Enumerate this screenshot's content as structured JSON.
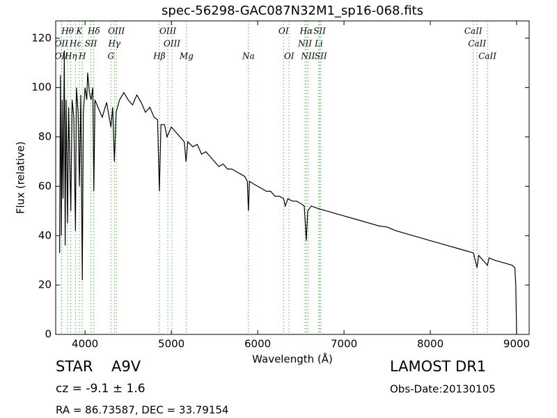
{
  "chart_data": {
    "type": "line",
    "title": "spec-56298-GAC087N32M1_sp16-068.fits",
    "x_label": "Wavelength (Å)",
    "y_label": "Flux (relative)",
    "xlim": [
      3660,
      9145
    ],
    "ylim": [
      0,
      127
    ],
    "xticks": [
      4000,
      5000,
      6000,
      7000,
      8000,
      9000
    ],
    "yticks": [
      0,
      20,
      40,
      60,
      80,
      100,
      120
    ],
    "color": "#000000",
    "line_color": "#4daf4a",
    "x": [
      3705,
      3715,
      3725,
      3735,
      3745,
      3760,
      3770,
      3780,
      3798,
      3810,
      3835,
      3850,
      3870,
      3889,
      3900,
      3920,
      3934,
      3950,
      3968,
      3980,
      4000,
      4020,
      4030,
      4050,
      4070,
      4090,
      4102,
      4115,
      4150,
      4200,
      4250,
      4300,
      4320,
      4340,
      4360,
      4400,
      4450,
      4500,
      4550,
      4600,
      4650,
      4700,
      4750,
      4800,
      4840,
      4861,
      4880,
      4920,
      4950,
      5000,
      5050,
      5100,
      5150,
      5170,
      5190,
      5250,
      5300,
      5350,
      5400,
      5450,
      5500,
      5550,
      5600,
      5650,
      5700,
      5750,
      5800,
      5850,
      5880,
      5893,
      5905,
      5950,
      6000,
      6050,
      6100,
      6150,
      6200,
      6250,
      6300,
      6320,
      6350,
      6400,
      6450,
      6500,
      6540,
      6563,
      6580,
      6620,
      6700,
      6800,
      6900,
      7000,
      7100,
      7200,
      7300,
      7400,
      7500,
      7600,
      7700,
      7800,
      7900,
      8000,
      8100,
      8200,
      8300,
      8400,
      8500,
      8542,
      8560,
      8662,
      8680,
      8750,
      8850,
      8950,
      8980,
      8990,
      9000
    ],
    "values": [
      33,
      105,
      40,
      95,
      55,
      115,
      36,
      95,
      45,
      92,
      50,
      95,
      88,
      42,
      100,
      90,
      60,
      97,
      22,
      90,
      100,
      95,
      106,
      98,
      95,
      100,
      58,
      95,
      92,
      88,
      94,
      84,
      92,
      70,
      90,
      95,
      98,
      95,
      93,
      97,
      94,
      90,
      92,
      88,
      87,
      58,
      85,
      85,
      80,
      84,
      82,
      80,
      78,
      70,
      78,
      76,
      77,
      73,
      74,
      72,
      70,
      68,
      69,
      67,
      67,
      66,
      65,
      64,
      62,
      50,
      62,
      61,
      60,
      59,
      58,
      58,
      56,
      56,
      55,
      52,
      55,
      54,
      54,
      53,
      52,
      38,
      50,
      52,
      51,
      50,
      49,
      48,
      47,
      46,
      45,
      44,
      43.5,
      42,
      41,
      40,
      39,
      38,
      37,
      36,
      35,
      34,
      33,
      27,
      32,
      28,
      31,
      30,
      29,
      28,
      27,
      20,
      0
    ],
    "lines": [
      {
        "x": 3727,
        "label": "OII"
      },
      {
        "x": 3727,
        "label": "OII"
      },
      {
        "x": 3798,
        "label": "Hθ"
      },
      {
        "x": 3835,
        "label": "Hη"
      },
      {
        "x": 3889,
        "label": "Hε"
      },
      {
        "x": 3934,
        "label": "K"
      },
      {
        "x": 3968,
        "label": "H"
      },
      {
        "x": 4068,
        "label": "SII"
      },
      {
        "x": 4102,
        "label": "Hδ"
      },
      {
        "x": 4300,
        "label": "G"
      },
      {
        "x": 4340,
        "label": "Hγ"
      },
      {
        "x": 4363,
        "label": "OIII"
      },
      {
        "x": 4861,
        "label": "Hβ"
      },
      {
        "x": 4959,
        "label": "OIII"
      },
      {
        "x": 5007,
        "label": "OIII"
      },
      {
        "x": 5175,
        "label": "Mg"
      },
      {
        "x": 5893,
        "label": "Na"
      },
      {
        "x": 6300,
        "label": "OI"
      },
      {
        "x": 6364,
        "label": "OI"
      },
      {
        "x": 6548,
        "label": "NII"
      },
      {
        "x": 6563,
        "label": "Hα"
      },
      {
        "x": 6583,
        "label": "NII"
      },
      {
        "x": 6708,
        "label": "Li"
      },
      {
        "x": 6717,
        "label": "SII"
      },
      {
        "x": 6731,
        "label": "SII"
      },
      {
        "x": 8498,
        "label": "CaII"
      },
      {
        "x": 8542,
        "label": "CaII"
      },
      {
        "x": 8662,
        "label": "CaII"
      }
    ],
    "object_class": "STAR",
    "subclass": "A9V",
    "redshift": "cz = -9.1 ± 1.6",
    "coords": "RA = 86.73587, DEC = 33.79154",
    "survey": "LAMOST DR1",
    "obs_date": "Obs-Date:20130105"
  }
}
